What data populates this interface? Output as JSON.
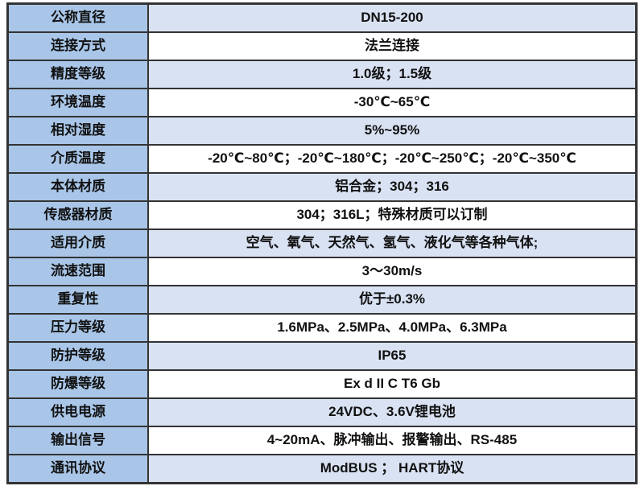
{
  "colors": {
    "label_bg": "#a9c6e8",
    "tint_bg": "#d9e2f3",
    "plain_bg": "#ffffff",
    "border": "#333333",
    "text": "#111111"
  },
  "table": {
    "rows": [
      {
        "label": "公称直径",
        "value": "DN15-200"
      },
      {
        "label": "连接方式",
        "value": "法兰连接"
      },
      {
        "label": "精度等级",
        "value": "1.0级；1.5级"
      },
      {
        "label": "环境温度",
        "value": "-30℃~65℃"
      },
      {
        "label": "相对湿度",
        "value": "5%~95%"
      },
      {
        "label": "介质温度",
        "value": "-20℃~80℃；-20℃~180℃；-20℃~250℃；-20℃~350℃"
      },
      {
        "label": "本体材质",
        "value": "铝合金；304；316"
      },
      {
        "label": "传感器材质",
        "value": "304；316L；特殊材质可以订制"
      },
      {
        "label": "适用介质",
        "value": "空气、氧气、天然气、氢气、液化气等各种气体;"
      },
      {
        "label": "流速范围",
        "value": "3～30m/s"
      },
      {
        "label": "重复性",
        "value": "优于±0.3%"
      },
      {
        "label": "压力等级",
        "value": "1.6MPa、2.5MPa、4.0MPa、6.3MPa"
      },
      {
        "label": "防护等级",
        "value": "IP65"
      },
      {
        "label": "防爆等级",
        "value": "Ex d II C T6 Gb"
      },
      {
        "label": "供电电源",
        "value": "24VDC、3.6V锂电池"
      },
      {
        "label": "输出信号",
        "value": "4~20mA、脉冲输出、报警输出、RS-485"
      },
      {
        "label": "通讯协议",
        "value": "ModBUS ； HART协议"
      }
    ]
  }
}
